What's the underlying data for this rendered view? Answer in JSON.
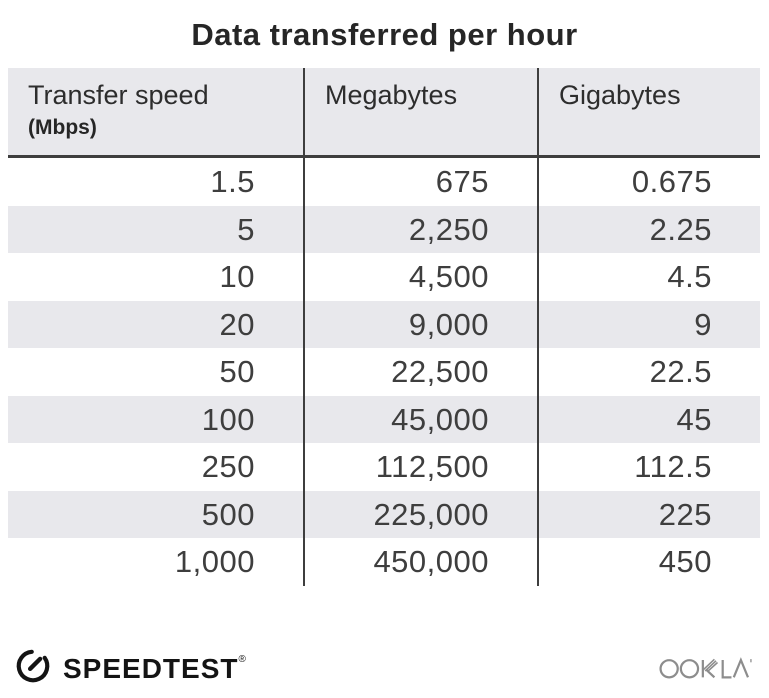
{
  "title": "Data transferred per hour",
  "table": {
    "header": {
      "col1_line1": "Transfer speed",
      "col1_line2": "(Mbps)",
      "col2": "Megabytes",
      "col3": "Gigabytes"
    },
    "rows": [
      [
        "1.5",
        "675",
        "0.675"
      ],
      [
        "5",
        "2,250",
        "2.25"
      ],
      [
        "10",
        "4,500",
        "4.5"
      ],
      [
        "20",
        "9,000",
        "9"
      ],
      [
        "50",
        "22,500",
        "22.5"
      ],
      [
        "100",
        "45,000",
        "45"
      ],
      [
        "250",
        "112,500",
        "112.5"
      ],
      [
        "500",
        "225,000",
        "225"
      ],
      [
        "1,000",
        "450,000",
        "450"
      ]
    ]
  },
  "chart_data": {
    "type": "table",
    "title": "Data transferred per hour",
    "columns": [
      "Transfer speed (Mbps)",
      "Megabytes",
      "Gigabytes"
    ],
    "rows": [
      [
        1.5,
        675,
        0.675
      ],
      [
        5,
        2250,
        2.25
      ],
      [
        10,
        4500,
        4.5
      ],
      [
        20,
        9000,
        9
      ],
      [
        50,
        22500,
        22.5
      ],
      [
        100,
        45000,
        45
      ],
      [
        250,
        112500,
        112.5
      ],
      [
        500,
        225000,
        225
      ],
      [
        1000,
        450000,
        450
      ]
    ]
  },
  "footer": {
    "speedtest_label": "SPEEDTEST",
    "speedtest_trademark": "®",
    "ookla_label": "OOKLA"
  },
  "colors": {
    "header_bg": "#e8e8ec",
    "stripe_bg": "#e8e8ec",
    "rule_line": "#3e3e3e",
    "number_text": "#3e3e3e",
    "title_text": "#262626",
    "brand_black": "#141414",
    "ookla_gray": "#8d8d8d"
  }
}
